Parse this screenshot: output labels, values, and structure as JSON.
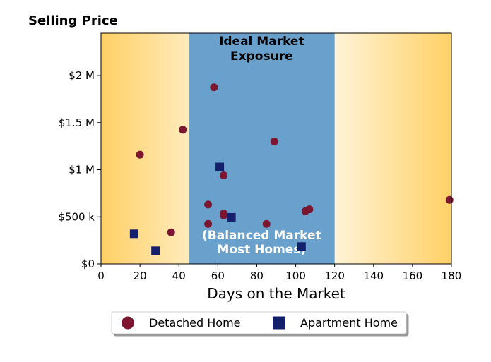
{
  "chart_data": {
    "type": "scatter",
    "title": "Selling Price",
    "xlabel": "Days on the Market",
    "ylabel": "",
    "xlim": [
      0,
      180
    ],
    "ylim": [
      0,
      2450000
    ],
    "xticks": [
      0,
      20,
      40,
      60,
      80,
      100,
      120,
      140,
      160,
      180
    ],
    "xtick_labels": [
      "0",
      "20",
      "40",
      "60",
      "80",
      "100",
      "120",
      "140",
      "160",
      "180"
    ],
    "yticks": [
      0,
      500000,
      1000000,
      1500000,
      2000000
    ],
    "ytick_labels": [
      "$0",
      "$500 k",
      "$1 M",
      "$1.5 M",
      "$2 M"
    ],
    "grid": false,
    "legend_placement": "bottom-center",
    "shaded_region": {
      "x_range": [
        45,
        120
      ],
      "color": "#6aa0cc"
    },
    "background_gradient": {
      "edge_color": "#ffd166",
      "center_color": "#ffffff"
    },
    "annotations": [
      {
        "lines": [
          "Ideal Market",
          "Exposure"
        ],
        "color": "#000000"
      },
      {
        "lines": [
          "(Balanced Market",
          "Most Homes)"
        ],
        "color": "#ffffff"
      }
    ],
    "series": [
      {
        "name": "Detached Home",
        "marker": "circle",
        "color": "#7b1530",
        "points": [
          [
            20,
            1160000
          ],
          [
            36,
            335000
          ],
          [
            42,
            1425000
          ],
          [
            55,
            630000
          ],
          [
            55,
            425000
          ],
          [
            58,
            1875000
          ],
          [
            63,
            515000
          ],
          [
            63,
            535000
          ],
          [
            63,
            940000
          ],
          [
            85,
            425000
          ],
          [
            89,
            1300000
          ],
          [
            105,
            560000
          ],
          [
            107,
            580000
          ],
          [
            179,
            680000
          ]
        ]
      },
      {
        "name": "Apartment Home",
        "marker": "square",
        "color": "#14206e",
        "points": [
          [
            17,
            320000
          ],
          [
            28,
            140000
          ],
          [
            61,
            1030000
          ],
          [
            67,
            495000
          ],
          [
            103,
            185000
          ]
        ]
      }
    ]
  }
}
